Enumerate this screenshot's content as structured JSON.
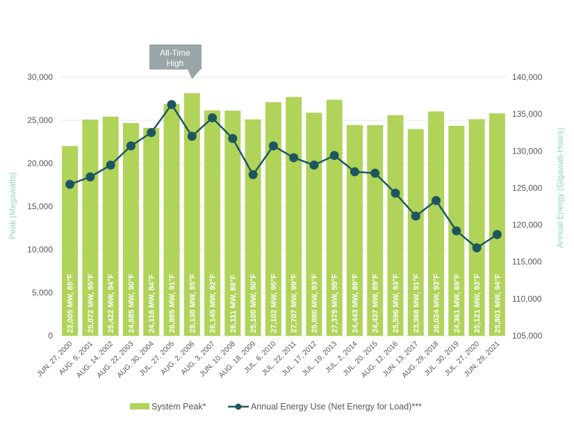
{
  "chart_data": {
    "type": "bar+line",
    "categories": [
      "JUN. 27, 2000",
      "AUG. 9, 2001",
      "AUG. 14, 2002",
      "AUG. 22, 2003",
      "AUG. 30, 2004",
      "JUL. 27, 2005",
      "AUG. 2, 2006",
      "AUG. 3, 2007",
      "JUN. 10, 2008",
      "AUG. 18, 2009",
      "JUL. 6, 2010",
      "JUL. 22, 2011",
      "JUL. 17, 2012",
      "JUL. 19, 2013",
      "JUL. 2, 2014",
      "JUL. 20, 2015",
      "AUG. 12, 2016",
      "JUN. 13, 2017",
      "AUG. 29, 2018",
      "JUL. 30, 2019",
      "JUL. 27, 2020",
      "JUN. 29, 2021"
    ],
    "series": [
      {
        "name": "System Peak*",
        "type": "bar",
        "axis": "left",
        "color": "#b0d35a",
        "values": [
          22005,
          25072,
          25422,
          24685,
          24116,
          26885,
          28130,
          26145,
          26111,
          25100,
          27102,
          27707,
          25880,
          27379,
          24443,
          24437,
          25596,
          23968,
          26024,
          24361,
          25121,
          25801
        ],
        "labels": [
          "22,005 MW, 85°F",
          "25,072 MW, 95°F",
          "25,422 MW, 94°F",
          "24,685 MW, 90°F",
          "24,116 MW, 84°F",
          "26,885 MW, 91°F",
          "28,130 MW, 95°F",
          "26,145 MW, 92°F",
          "26,111 MW, 89°F",
          "25,100 MW, 90°F",
          "27,102 MW, 95°F",
          "27,707 MW, 99°F",
          "25,880 MW, 93°F",
          "27,379 MW, 95°F",
          "24,443 MW, 89°F",
          "24,437 MW, 89°F",
          "25,596 MW, 93°F",
          "23,968 MW, 91°F",
          "26,024 MW, 93°F",
          "24,361 MW, 89°F",
          "25,121 MW, 93°F",
          "25,801 MW, 94°F"
        ]
      },
      {
        "name": "Annual Energy Use (Net Energy for Load)***",
        "type": "line",
        "axis": "right",
        "color": "#1e5660",
        "values": [
          125500,
          126500,
          128100,
          130700,
          132500,
          136300,
          132000,
          134500,
          131700,
          126800,
          130700,
          129100,
          128100,
          129400,
          127200,
          127000,
          124300,
          121200,
          123300,
          119200,
          116900,
          118700
        ]
      }
    ],
    "ylabel": "Peak (Megawatts)",
    "ylim": [
      0,
      30000
    ],
    "yticks": [
      "0",
      "5,000",
      "10,000",
      "15,000",
      "20,000",
      "25,000",
      "30,000"
    ],
    "y2label": "Annual Energy (Gigawatt-Hours)",
    "y2lim": [
      105000,
      140000
    ],
    "y2ticks": [
      "105,000",
      "110,000",
      "115,000",
      "120,000",
      "125,000",
      "130,000",
      "135,000",
      "140,000"
    ],
    "grid": true,
    "legend_position": "bottom",
    "annotation": {
      "text_lines": [
        "All-Time",
        "High"
      ],
      "target": "AUG. 2, 2006",
      "color": "#9aa5a8"
    }
  }
}
